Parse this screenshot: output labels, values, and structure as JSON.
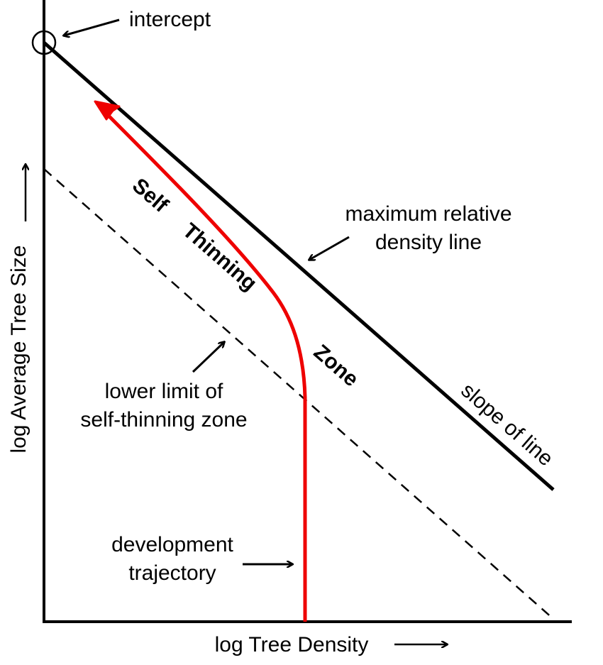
{
  "axes": {
    "x_label": "log Tree Density",
    "y_label": "log Average Tree Size"
  },
  "annotations": {
    "intercept": "intercept",
    "max_line_1": "maximum relative",
    "max_line_2": "density line",
    "lower_limit_1": "lower limit of",
    "lower_limit_2": "self-thinning zone",
    "development_1": "development",
    "development_2": "trajectory",
    "slope": "slope of line",
    "self_thinning_1": "Self",
    "self_thinning_2": "Thinning",
    "zone": "Zone"
  },
  "colors": {
    "axis": "#000000",
    "trajectory": "#ee0000"
  }
}
